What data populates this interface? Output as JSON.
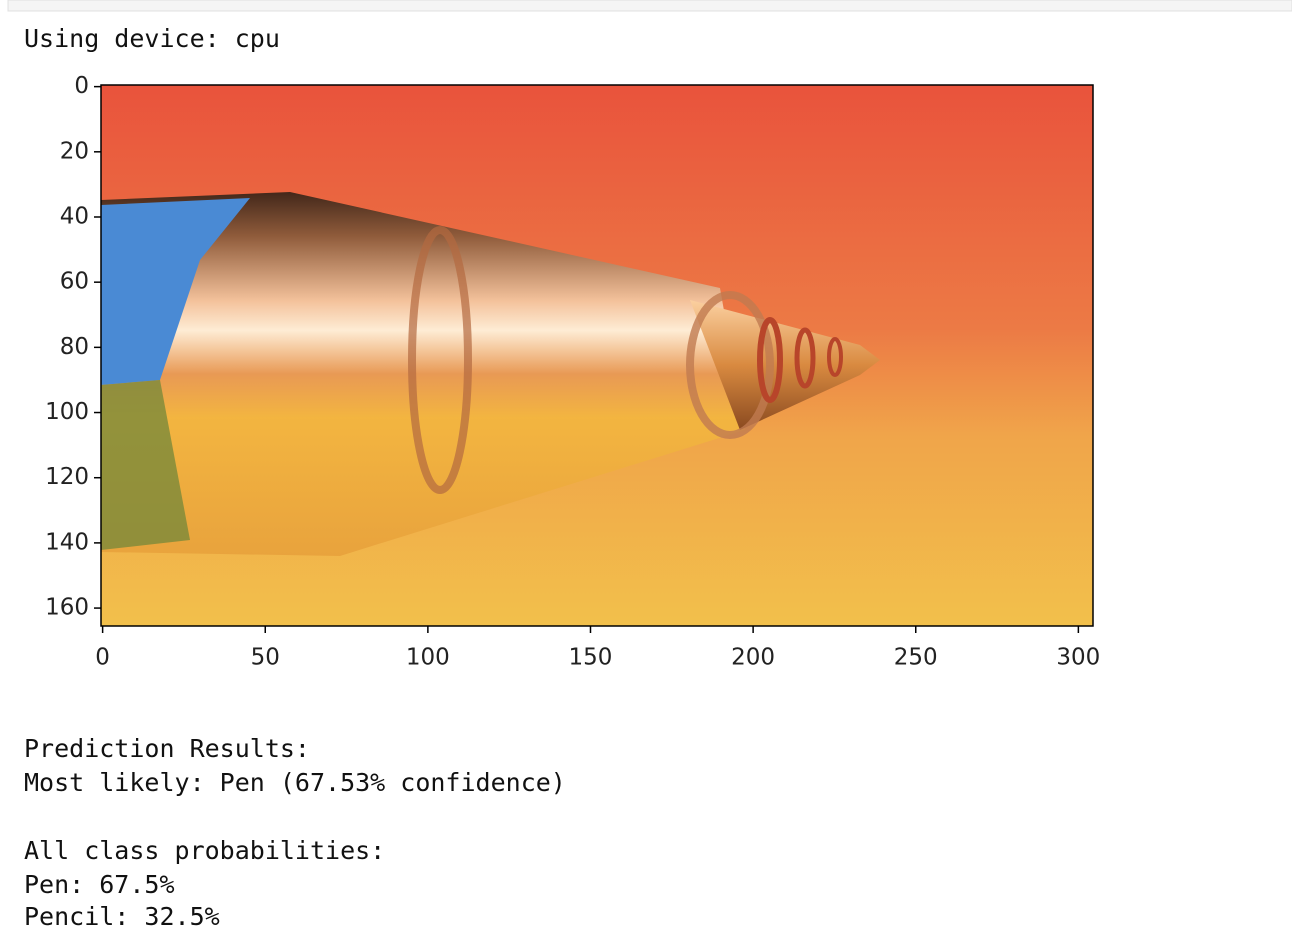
{
  "output": {
    "device_line": "Using device: cpu",
    "prediction": [
      "Prediction Results:",
      "Most likely: Pen (67.53% confidence)"
    ],
    "probabilities": {
      "heading": "All class probabilities:",
      "items": [
        "Pen: 67.5%",
        "Pencil: 32.5%"
      ]
    }
  },
  "chart_data": {
    "type": "image",
    "xlim": [
      -0.5,
      304.5
    ],
    "ylim": [
      165.5,
      -0.5
    ],
    "xticks": [
      0,
      50,
      100,
      150,
      200,
      250,
      300
    ],
    "yticks": [
      0,
      20,
      40,
      60,
      80,
      100,
      120,
      140,
      160
    ]
  }
}
